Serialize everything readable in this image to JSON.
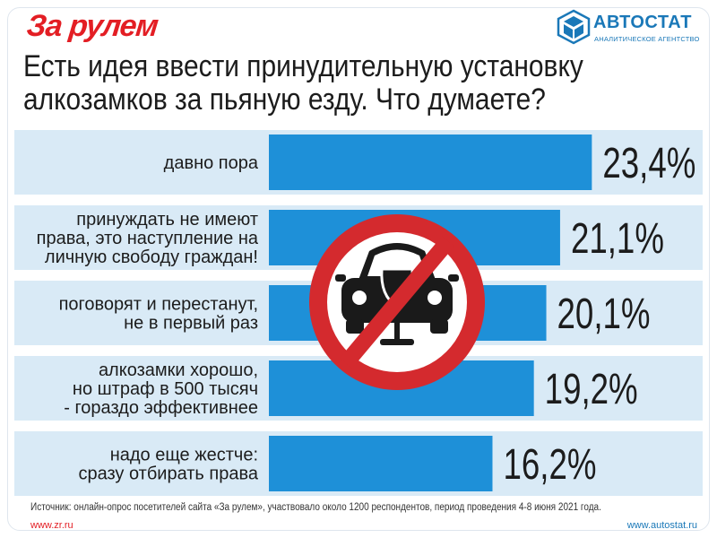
{
  "header": {
    "logo_left": "За рулем",
    "logo_right_name": "АВТОСТАТ",
    "logo_right_sub": "АНАЛИТИЧЕСКОЕ АГЕНТСТВО",
    "title_line1": "Есть идея ввести принудительную установку",
    "title_line2": "алкозамков за пьяную езду. Что думаете?"
  },
  "footer": {
    "source": "Источник: онлайн-опрос посетителей сайта «За рулем», участвовало около 1200 респондентов, период проведения 4-8 июня 2021 года.",
    "left_url": "www.zr.ru",
    "right_url": "www.autostat.ru"
  },
  "colors": {
    "bar": "#1e90d8",
    "stripe": "#d9eaf6",
    "brand_red": "#e31e24",
    "brand_blue": "#1a78b8",
    "sign_red": "#d42a2e"
  },
  "icons": [
    "no-drunk-driving-sign-icon"
  ],
  "chart_data": {
    "type": "bar",
    "orientation": "horizontal",
    "categories": [
      [
        "давно пора"
      ],
      [
        "принуждать не имеют",
        "права, это наступление на",
        "личную свободу граждан!"
      ],
      [
        "поговорят и перестанут,",
        "не в первый раз"
      ],
      [
        "алкозамки хорошо,",
        "но штраф в 500 тысяч",
        "- гораздо эффективнее"
      ],
      [
        "надо еще жестче:",
        "сразу отбирать права"
      ]
    ],
    "values": [
      23.4,
      21.1,
      20.1,
      19.2,
      16.2
    ],
    "value_labels": [
      "23,4%",
      "21,1%",
      "20,1%",
      "19,2%",
      "16,2%"
    ],
    "title": "Есть идея ввести принудительную установку алкозамков за пьяную езду. Что думаете?",
    "xlabel": "",
    "ylabel": "",
    "grid": false,
    "legend": "none"
  }
}
